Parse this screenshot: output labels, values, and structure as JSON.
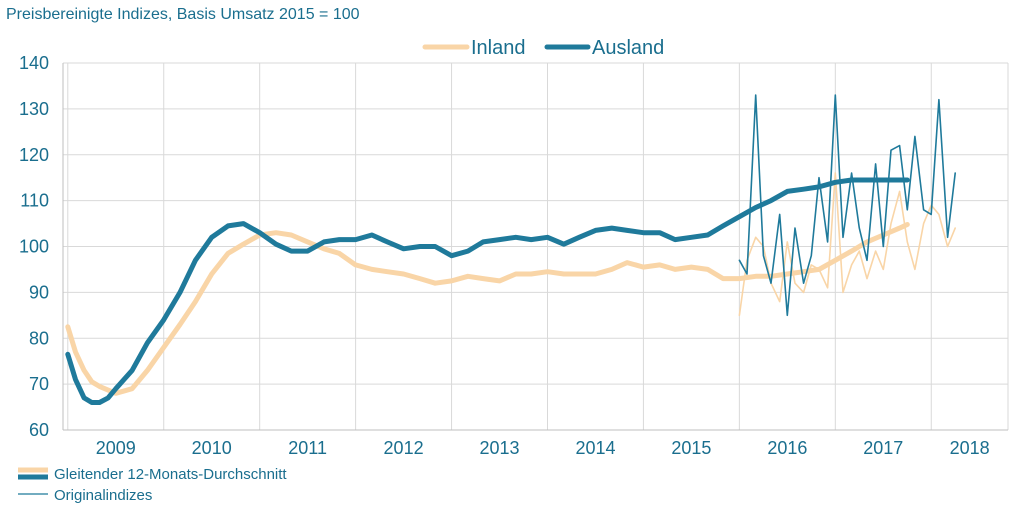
{
  "colors": {
    "inland": "#f9d5a7",
    "ausland": "#1f7a9b",
    "grid": "#d9d9d9",
    "text": "#1a6e8e"
  },
  "chart_data": {
    "type": "line",
    "title": "Preisbereinigte Indizes, Basis Umsatz 2015 = 100",
    "ylim": [
      60,
      140
    ],
    "yticks": [
      60,
      70,
      80,
      90,
      100,
      110,
      120,
      130,
      140
    ],
    "years": [
      "2009",
      "2010",
      "2011",
      "2012",
      "2013",
      "2014",
      "2015",
      "2016",
      "2017",
      "2018"
    ],
    "xlim": [
      2008.95,
      2018.8
    ],
    "legend_top": [
      "Inland",
      "Ausland"
    ],
    "legend_bottom": [
      "Gleitender 12-Monats-Durchschnitt",
      "Originalindizes"
    ],
    "series": [
      {
        "name": "Inland",
        "kind": "moving_average",
        "x": [
          2009.0,
          2009.08,
          2009.17,
          2009.25,
          2009.33,
          2009.5,
          2009.67,
          2009.83,
          2010.0,
          2010.17,
          2010.33,
          2010.5,
          2010.67,
          2010.83,
          2011.0,
          2011.17,
          2011.33,
          2011.5,
          2011.67,
          2011.83,
          2012.0,
          2012.17,
          2012.33,
          2012.5,
          2012.67,
          2012.83,
          2013.0,
          2013.17,
          2013.33,
          2013.5,
          2013.67,
          2013.83,
          2014.0,
          2014.17,
          2014.33,
          2014.5,
          2014.67,
          2014.83,
          2015.0,
          2015.17,
          2015.33,
          2015.5,
          2015.67,
          2015.83,
          2016.0,
          2016.17,
          2016.33,
          2016.5,
          2016.67,
          2016.83,
          2017.0,
          2017.17,
          2017.33,
          2017.5,
          2017.67,
          2017.75
        ],
        "values": [
          82.5,
          77,
          73,
          70.5,
          69.5,
          68,
          69,
          73,
          78,
          83,
          88,
          94,
          98.5,
          100.5,
          102.5,
          103,
          102.5,
          101,
          99.5,
          98.5,
          96,
          95,
          94.5,
          94,
          93,
          92,
          92.5,
          93.5,
          93,
          92.5,
          94,
          94,
          94.5,
          94,
          94,
          94,
          95,
          96.5,
          95.5,
          96,
          95,
          95.5,
          95,
          93,
          93,
          93.5,
          93.5,
          94,
          94.5,
          95,
          97,
          99,
          101,
          102.5,
          104,
          104.8
        ]
      },
      {
        "name": "Ausland",
        "kind": "moving_average",
        "x": [
          2009.0,
          2009.08,
          2009.17,
          2009.25,
          2009.33,
          2009.42,
          2009.5,
          2009.67,
          2009.83,
          2010.0,
          2010.17,
          2010.33,
          2010.5,
          2010.67,
          2010.83,
          2011.0,
          2011.17,
          2011.33,
          2011.5,
          2011.67,
          2011.83,
          2012.0,
          2012.17,
          2012.33,
          2012.5,
          2012.67,
          2012.83,
          2013.0,
          2013.17,
          2013.33,
          2013.5,
          2013.67,
          2013.83,
          2014.0,
          2014.17,
          2014.33,
          2014.5,
          2014.67,
          2014.83,
          2015.0,
          2015.17,
          2015.33,
          2015.5,
          2015.67,
          2015.83,
          2016.0,
          2016.17,
          2016.33,
          2016.5,
          2016.67,
          2016.83,
          2017.0,
          2017.17,
          2017.33,
          2017.5,
          2017.67,
          2017.75
        ],
        "values": [
          76.5,
          71,
          67,
          66,
          66,
          67,
          69,
          73,
          79,
          84,
          90,
          97,
          102,
          104.5,
          105,
          103,
          100.5,
          99,
          99,
          101,
          101.5,
          101.5,
          102.5,
          101,
          99.5,
          100,
          100,
          98,
          99,
          101,
          101.5,
          102,
          101.5,
          102,
          100.5,
          102,
          103.5,
          104,
          103.5,
          103,
          103,
          101.5,
          102,
          102.5,
          104.5,
          106.5,
          108.5,
          110,
          112,
          112.5,
          113,
          114,
          114.5,
          114.5,
          114.5,
          114.5,
          114.5
        ]
      },
      {
        "name": "Inland",
        "kind": "original",
        "x": [
          2016.0,
          2016.08,
          2016.17,
          2016.25,
          2016.33,
          2016.42,
          2016.5,
          2016.58,
          2016.67,
          2016.75,
          2016.83,
          2016.92,
          2017.0,
          2017.08,
          2017.17,
          2017.25,
          2017.33,
          2017.42,
          2017.5,
          2017.58,
          2017.67,
          2017.75,
          2017.83,
          2017.92,
          2018.0,
          2018.08,
          2018.17,
          2018.25
        ],
        "values": [
          85,
          97,
          102,
          100,
          92,
          88,
          101,
          92,
          90,
          96,
          95,
          91,
          116,
          90,
          96,
          99,
          93,
          99,
          95,
          105,
          112,
          101,
          95,
          105,
          109,
          107,
          100,
          104
        ]
      },
      {
        "name": "Ausland",
        "kind": "original",
        "x": [
          2016.0,
          2016.08,
          2016.17,
          2016.25,
          2016.33,
          2016.42,
          2016.5,
          2016.58,
          2016.67,
          2016.75,
          2016.83,
          2016.92,
          2017.0,
          2017.08,
          2017.17,
          2017.25,
          2017.33,
          2017.42,
          2017.5,
          2017.58,
          2017.67,
          2017.75,
          2017.83,
          2017.92,
          2018.0,
          2018.08,
          2018.17,
          2018.25
        ],
        "values": [
          97,
          94,
          133,
          98,
          92,
          107,
          85,
          104,
          92,
          98,
          115,
          101,
          133,
          102,
          116,
          104,
          97,
          118,
          100,
          121,
          122,
          108,
          124,
          108,
          107,
          132,
          102,
          116
        ]
      }
    ]
  }
}
